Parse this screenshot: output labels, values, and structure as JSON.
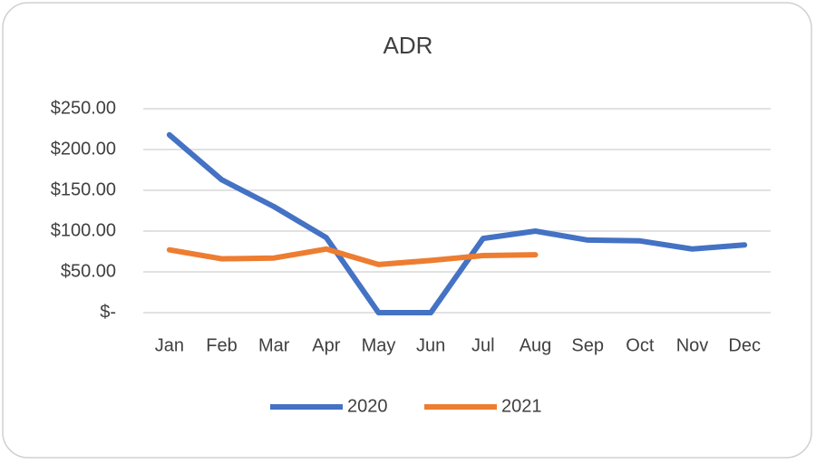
{
  "chart_data": {
    "type": "line",
    "title": "ADR",
    "categories": [
      "Jan",
      "Feb",
      "Mar",
      "Apr",
      "May",
      "Jun",
      "Jul",
      "Aug",
      "Sep",
      "Oct",
      "Nov",
      "Dec"
    ],
    "series": [
      {
        "name": "2020",
        "color": "#4472c4",
        "values": [
          218,
          163,
          130,
          92,
          0,
          0,
          91,
          100,
          89,
          88,
          78,
          83
        ]
      },
      {
        "name": "2021",
        "color": "#ed7d31",
        "values": [
          77,
          66,
          67,
          78,
          59,
          64,
          70,
          71,
          null,
          null,
          null,
          null
        ]
      }
    ],
    "ylim": [
      0,
      250
    ],
    "yticks": [
      {
        "value": 0,
        "label": "$-"
      },
      {
        "value": 50,
        "label": "$50.00"
      },
      {
        "value": 100,
        "label": "$100.00"
      },
      {
        "value": 150,
        "label": "$150.00"
      },
      {
        "value": 200,
        "label": "$200.00"
      },
      {
        "value": 250,
        "label": "$250.00"
      }
    ],
    "grid": true,
    "legend": "bottom"
  }
}
